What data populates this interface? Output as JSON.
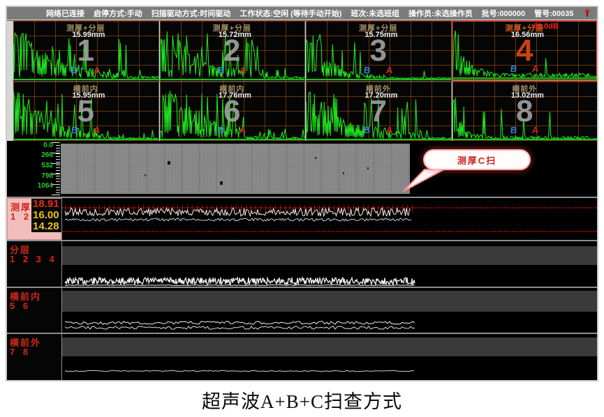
{
  "topbar": {
    "items": [
      "网络已连接",
      "启停方式:手动",
      "扫描驱动方式:时间驱动",
      "工作状态:空闲 (等待手动开始)",
      "班次:未选班组",
      "操作员:未选操作员",
      "批号:000000",
      "管号:00035"
    ]
  },
  "ascan": {
    "b_icon": "B",
    "a_icon": "A",
    "panels": [
      {
        "title": "测厚+分层",
        "value": "15.99mm",
        "number": "1"
      },
      {
        "title": "测厚+分层",
        "value": "15.72mm",
        "number": "2"
      },
      {
        "title": "测厚+分层",
        "value": "15.75mm",
        "number": "3"
      },
      {
        "title": "测厚+分层",
        "gain": "68.0dB",
        "value": "16.56mm",
        "number": "4"
      },
      {
        "title": "横前内",
        "value": "15.95mm",
        "number": "5"
      },
      {
        "title": "横前内",
        "value": "17.76mm",
        "number": "6"
      },
      {
        "title": "横前外",
        "value": "17.20mm",
        "number": "7"
      },
      {
        "title": "横前外",
        "value": "13.02mm",
        "number": "8"
      }
    ]
  },
  "cscan": {
    "axis_labels": [
      "0.0",
      "266",
      "532",
      "798",
      "1064"
    ],
    "callout_label": "测厚C扫"
  },
  "bscan": {
    "strips": [
      {
        "label": "测厚",
        "channels": "1 2 3",
        "values": [
          "18.91",
          "16.00",
          "14.28"
        ]
      },
      {
        "label": "分层",
        "channels": "1 2 3 4"
      },
      {
        "label": "横前内",
        "channels": "5 6"
      },
      {
        "label": "横前外",
        "channels": "7 8"
      }
    ]
  },
  "caption": "超声波A+B+C扫查方式",
  "colors": {
    "accent_red": "#d02818",
    "wave_green": "#1ee11e",
    "grid_orange": "#c86410",
    "value_yellow": "#ecc50a"
  }
}
